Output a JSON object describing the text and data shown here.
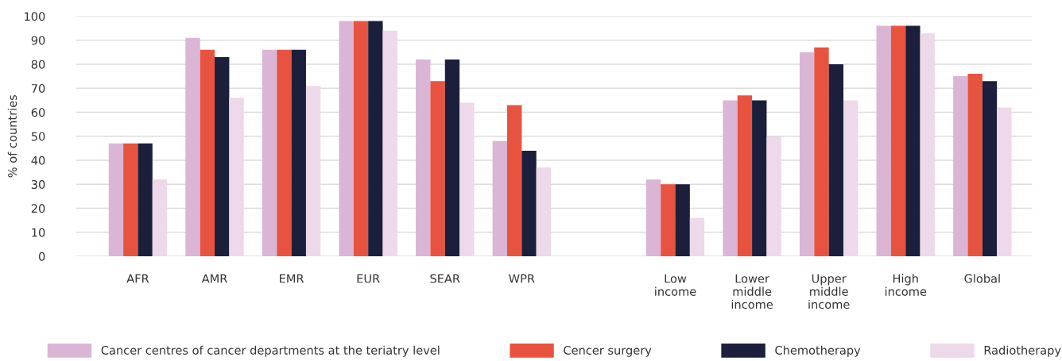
{
  "chart_data": {
    "type": "bar",
    "ylabel": "% of countries",
    "categories": [
      "AFR",
      "AMR",
      "EMR",
      "EUR",
      "SEAR",
      "WPR",
      null,
      "Low\nincome",
      "Lower\nmiddle\nincome",
      "Upper\nmiddle\nincome",
      "High\nincome",
      "Global"
    ],
    "series": [
      {
        "name": "Cancer centres of cancer departments at the teriatry level",
        "color": "#dbb5d6",
        "values": [
          47,
          91,
          86,
          98,
          82,
          48,
          null,
          32,
          65,
          85,
          96,
          75
        ]
      },
      {
        "name": "Cencer surgery",
        "color": "#e85340",
        "values": [
          47,
          86,
          86,
          98,
          73,
          63,
          null,
          30,
          67,
          87,
          96,
          76
        ]
      },
      {
        "name": "Chemotherapy",
        "color": "#1b1f3b",
        "values": [
          47,
          83,
          86,
          98,
          82,
          44,
          null,
          30,
          65,
          80,
          96,
          73
        ]
      },
      {
        "name": "Radiotherapy",
        "color": "#edd9e9",
        "values": [
          32,
          66,
          71,
          94,
          64,
          37,
          null,
          16,
          50,
          65,
          93,
          62
        ]
      }
    ],
    "ylim": [
      0,
      100
    ],
    "yticks": [
      0,
      10,
      20,
      30,
      40,
      50,
      60,
      70,
      80,
      90,
      100
    ],
    "grid": "y",
    "legend": "bottom"
  }
}
